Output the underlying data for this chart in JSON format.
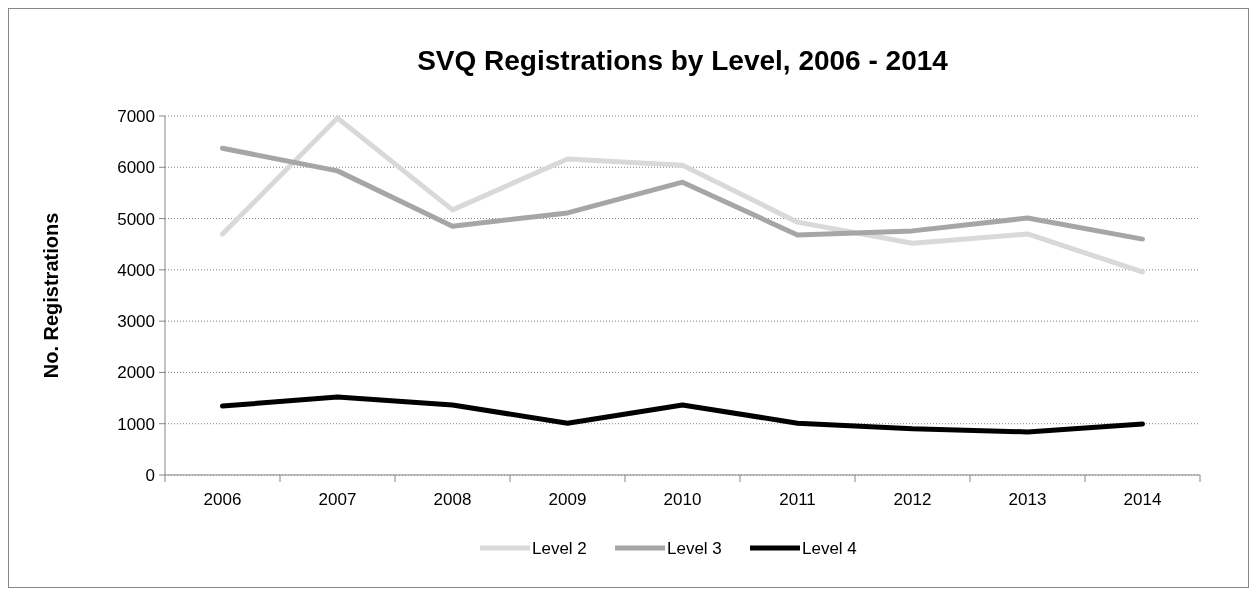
{
  "chart_data": {
    "type": "line",
    "title": "SVQ Registrations by Level, 2006 - 2014",
    "ylabel": "No. Registrations",
    "categories": [
      "2006",
      "2007",
      "2008",
      "2009",
      "2010",
      "2011",
      "2012",
      "2013",
      "2014"
    ],
    "series": [
      {
        "name": "Level 2",
        "color": "#d9d9d9",
        "values": [
          4700,
          6960,
          5170,
          6160,
          6040,
          4930,
          4520,
          4700,
          3960
        ]
      },
      {
        "name": "Level 3",
        "color": "#a6a6a6",
        "values": [
          6370,
          5930,
          4850,
          5110,
          5710,
          4680,
          4760,
          5010,
          4600
        ]
      },
      {
        "name": "Level 4",
        "color": "#000000",
        "values": [
          1345,
          1520,
          1365,
          1010,
          1365,
          1010,
          900,
          840,
          995
        ]
      }
    ],
    "ylim": [
      0,
      7000
    ],
    "yticks": [
      0,
      1000,
      2000,
      3000,
      4000,
      5000,
      6000,
      7000
    ],
    "grid": "y",
    "legend": "bottom",
    "marker": "none",
    "line_style": "solid"
  }
}
